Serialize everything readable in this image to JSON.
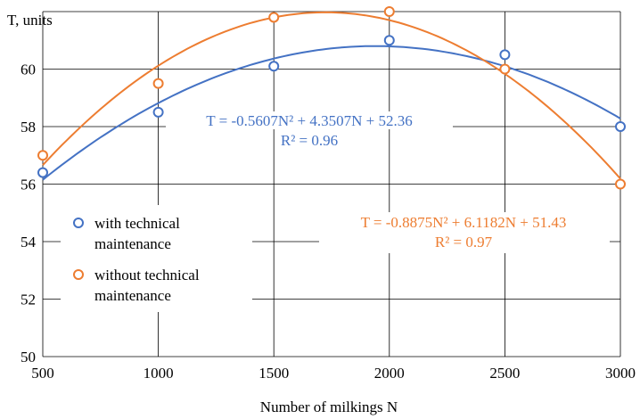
{
  "chart_data": {
    "type": "scatter",
    "title": "",
    "xlabel": "Number of milkings N",
    "ylabel": "T, units",
    "xlim": [
      500,
      3000
    ],
    "ylim": [
      50,
      62
    ],
    "x_ticks": [
      "500",
      "1000",
      "1500",
      "2000",
      "2500",
      "3000"
    ],
    "y_ticks": [
      "50",
      "52",
      "54",
      "56",
      "58",
      "60"
    ],
    "grid": true,
    "legend_position": "lower-left",
    "series": [
      {
        "name": "with technical maintenance",
        "legend_lines": [
          "with technical",
          "maintenance"
        ],
        "color": "#4472C4",
        "x": [
          500,
          1000,
          1500,
          2000,
          2500,
          3000
        ],
        "y": [
          56.4,
          58.5,
          60.1,
          61.0,
          60.5,
          58.0
        ],
        "trendline": {
          "a": -0.5607,
          "b": 4.3507,
          "c": 52.36,
          "x_unit": 500
        },
        "equation": "T = -0.5607N² + 4.3507N + 52.36",
        "r2": "R² = 0.96"
      },
      {
        "name": "without technical maintenance",
        "legend_lines": [
          "without technical",
          "maintenance"
        ],
        "color": "#ED7D31",
        "x": [
          500,
          1000,
          1500,
          2000,
          2500,
          3000
        ],
        "y": [
          57.0,
          59.5,
          61.8,
          62.0,
          60.0,
          56.0
        ],
        "trendline": {
          "a": -0.8875,
          "b": 6.1182,
          "c": 51.43,
          "x_unit": 500
        },
        "equation": "T = -0.8875N² + 6.1182N + 51.43",
        "r2": "R² = 0.97"
      }
    ]
  }
}
